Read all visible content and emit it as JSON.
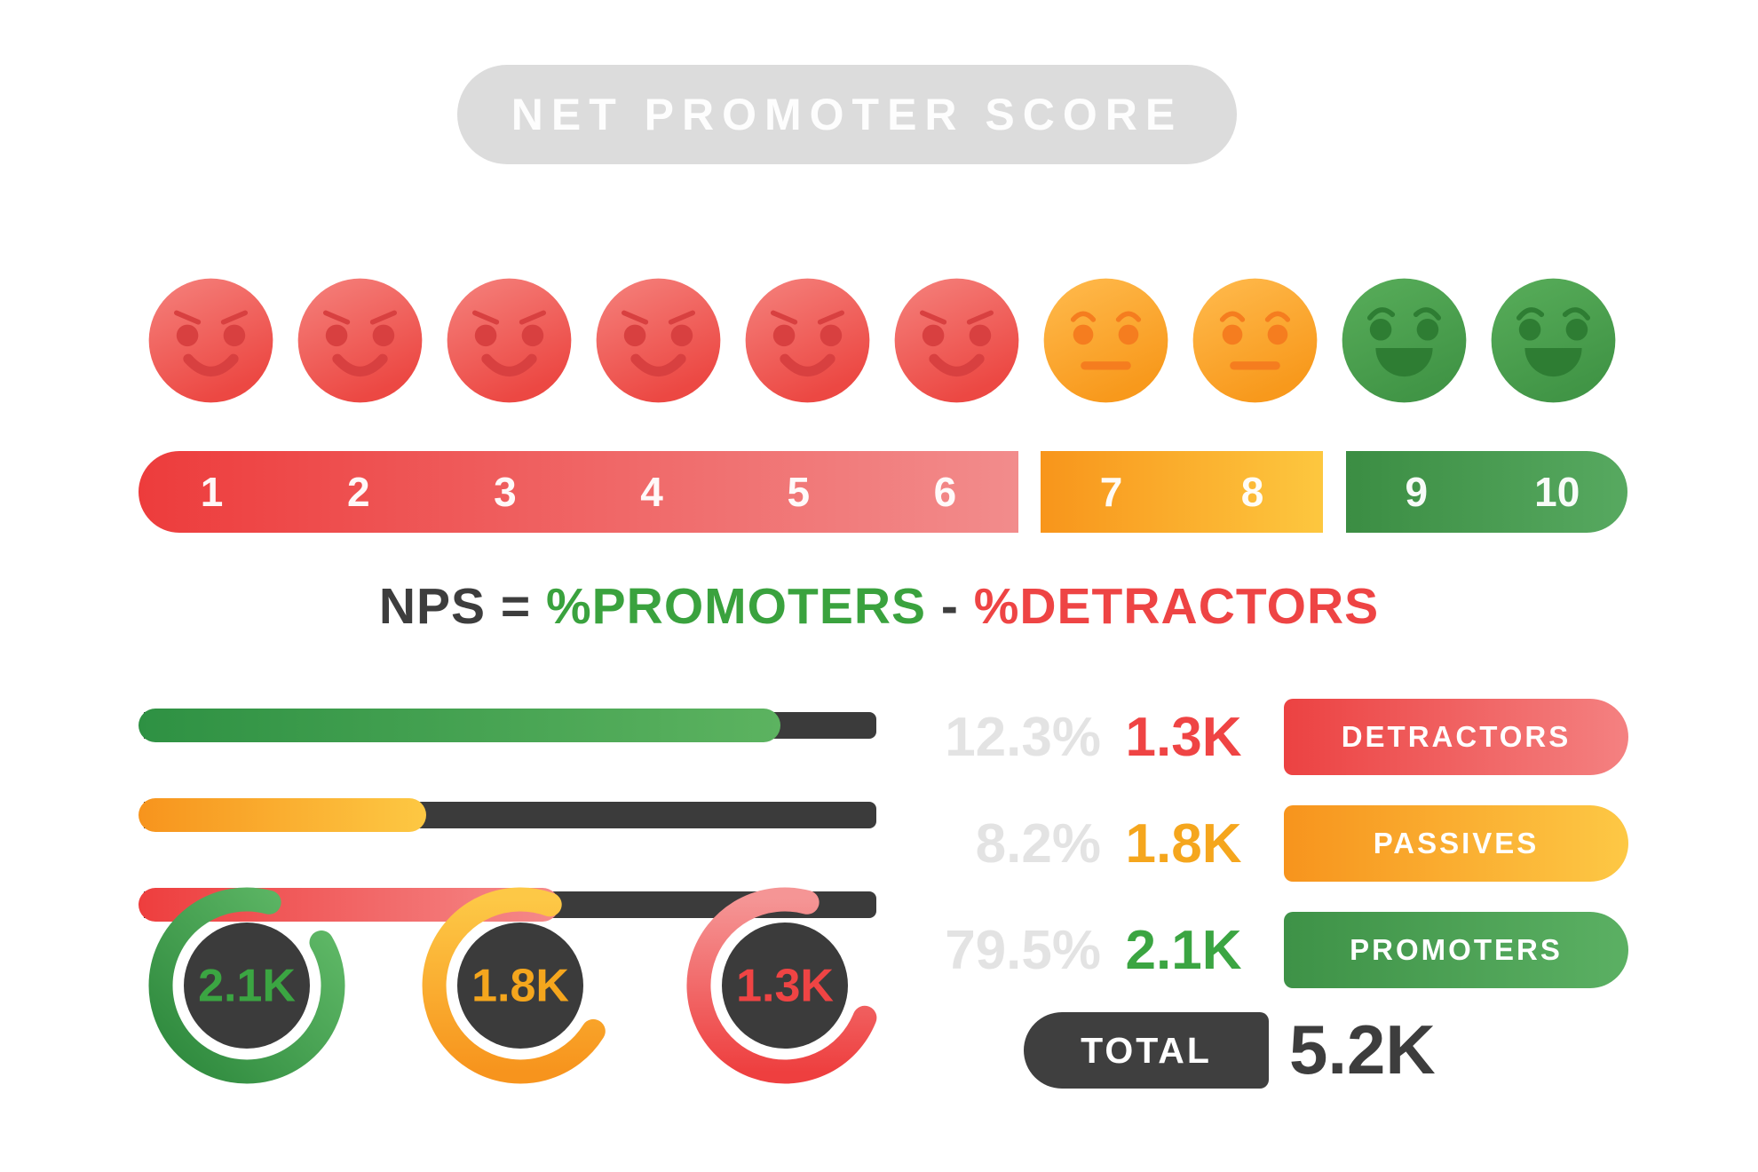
{
  "title": "NET PROMOTER SCORE",
  "faces": [
    {
      "score": 1,
      "sentiment": "angry"
    },
    {
      "score": 2,
      "sentiment": "angry"
    },
    {
      "score": 3,
      "sentiment": "angry"
    },
    {
      "score": 4,
      "sentiment": "angry"
    },
    {
      "score": 5,
      "sentiment": "angry"
    },
    {
      "score": 6,
      "sentiment": "angry"
    },
    {
      "score": 7,
      "sentiment": "neutral"
    },
    {
      "score": 8,
      "sentiment": "neutral"
    },
    {
      "score": 9,
      "sentiment": "happy"
    },
    {
      "score": 10,
      "sentiment": "happy"
    }
  ],
  "face_styles": {
    "angry": {
      "from": "#f5827d",
      "to": "#ec4843",
      "feature": "#d84040"
    },
    "neutral": {
      "from": "#ffbb4e",
      "to": "#f8991c",
      "feature": "#f57d1f"
    },
    "happy": {
      "from": "#58ad5a",
      "to": "#419546",
      "feature": "#2e7d33"
    }
  },
  "scale": {
    "segments": [
      {
        "name": "detractors",
        "numbers": [
          "1",
          "2",
          "3",
          "4",
          "5",
          "6"
        ],
        "from": "#ed3c3c",
        "to": "#f28c8c"
      },
      {
        "name": "passives",
        "numbers": [
          "7",
          "8"
        ],
        "from": "#f8951b",
        "to": "#fdc73f"
      },
      {
        "name": "promoters",
        "numbers": [
          "9",
          "10"
        ],
        "from": "#3b8d43",
        "to": "#57a960"
      }
    ]
  },
  "formula": {
    "parts": [
      {
        "text": "NPS = ",
        "color": "#3d3d3d"
      },
      {
        "text": "%PROMOTERS",
        "color": "#3aa23e"
      },
      {
        "text": " - ",
        "color": "#3d3d3d"
      },
      {
        "text": "%DETRACTORS",
        "color": "#ee4444"
      }
    ]
  },
  "progress_bars": {
    "track_color": "#3b3b3b",
    "items": [
      {
        "group": "promoters",
        "fill_pct": 87,
        "from": "#2e9143",
        "to": "#5cb360"
      },
      {
        "group": "passives",
        "fill_pct": 39,
        "from": "#f7941d",
        "to": "#fdc843"
      },
      {
        "group": "detractors",
        "fill_pct": 57,
        "from": "#ee3e3e",
        "to": "#f58a8a"
      }
    ]
  },
  "legend": {
    "percent_color": "#e3e3e3",
    "rows": [
      {
        "percent": "12.3%",
        "value": "1.3K",
        "label": "DETRACTORS",
        "value_color": "#ef4444",
        "pill_from": "#ec4242",
        "pill_to": "#f48181"
      },
      {
        "percent": "8.2%",
        "value": "1.8K",
        "label": "PASSIVES",
        "value_color": "#f5a61d",
        "pill_from": "#f7941d",
        "pill_to": "#fdc845"
      },
      {
        "percent": "79.5%",
        "value": "2.1K",
        "label": "PROMOTERS",
        "value_color": "#3ba542",
        "pill_from": "#3e9247",
        "pill_to": "#5bb063"
      }
    ]
  },
  "rings": {
    "center_color": "#3b3b3b",
    "items": [
      {
        "group": "promoters",
        "value": "2.1K",
        "value_color": "#3ba542",
        "start": 60,
        "sweep": 315,
        "from": "#62bb69",
        "to": "#2f8a3e",
        "grad": "diagonal"
      },
      {
        "group": "passives",
        "value": "1.8K",
        "value_color": "#f5a61d",
        "start": 122,
        "sweep": 258,
        "from": "#fdc846",
        "to": "#f7941d",
        "grad": "vertical"
      },
      {
        "group": "detractors",
        "value": "1.3K",
        "value_color": "#ef4444",
        "start": 112,
        "sweep": 263,
        "from": "#f59595",
        "to": "#ee3f3f",
        "grad": "vertical"
      }
    ]
  },
  "total": {
    "label": "TOTAL",
    "value": "5.2K"
  },
  "chart_data": {
    "type": "bar",
    "title": "NET PROMOTER SCORE",
    "categories": [
      "DETRACTORS",
      "PASSIVES",
      "PROMOTERS"
    ],
    "series": [
      {
        "name": "share_pct",
        "values": [
          12.3,
          8.2,
          79.5
        ]
      },
      {
        "name": "responses",
        "values": [
          "1.3K",
          "1.8K",
          "2.1K"
        ]
      }
    ],
    "total_responses": "5.2K",
    "formula": "NPS = %PROMOTERS - %DETRACTORS",
    "score_ranges": {
      "detractors": "1-6",
      "passives": "7-8",
      "promoters": "9-10"
    },
    "legend_position": "right"
  }
}
